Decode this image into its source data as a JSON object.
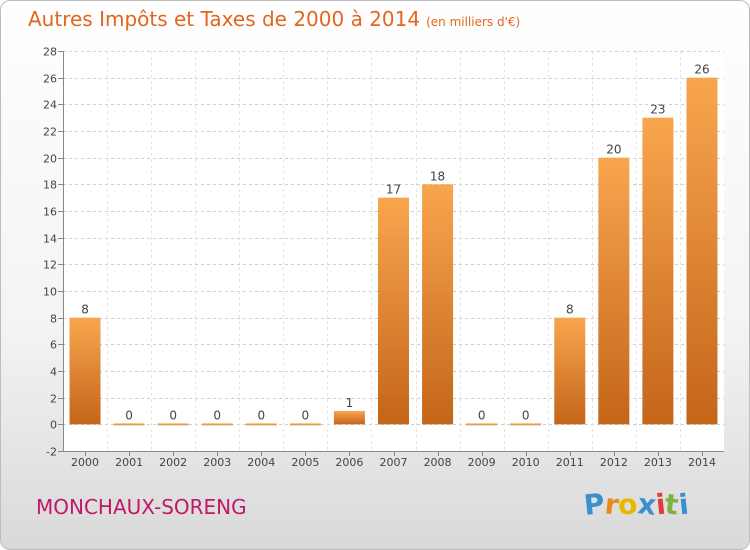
{
  "header": {
    "title": "Autres Impôts et Taxes de 2000 à 2014",
    "unit": "(en milliers d'€)"
  },
  "footer": {
    "town": "MONCHAUX-SORENG",
    "logo_letters": [
      "P",
      "r",
      "o",
      "x",
      "i",
      "t",
      "i"
    ],
    "logo_colors": [
      "#3a8fd0",
      "#e88a1a",
      "#e6b800",
      "#3a8fd0",
      "#e23b3b",
      "#7cb342",
      "#3a8fd0"
    ]
  },
  "chart_data": {
    "type": "bar",
    "categories": [
      "2000",
      "2001",
      "2002",
      "2003",
      "2004",
      "2005",
      "2006",
      "2007",
      "2008",
      "2009",
      "2010",
      "2011",
      "2012",
      "2013",
      "2014"
    ],
    "values": [
      8,
      0,
      0,
      0,
      0,
      0,
      1,
      17,
      18,
      0,
      0,
      8,
      20,
      23,
      26
    ],
    "labels": [
      "8",
      "0",
      "0",
      "0",
      "0",
      "0",
      "1",
      "17",
      "18",
      "0",
      "0",
      "8",
      "20",
      "23",
      "26"
    ],
    "ylim": [
      -2,
      28
    ],
    "yticks": [
      -2,
      0,
      2,
      4,
      6,
      8,
      10,
      12,
      14,
      16,
      18,
      20,
      22,
      24,
      26,
      28
    ],
    "grid": "horizontal dashed",
    "bar_color": "#f08a24"
  }
}
